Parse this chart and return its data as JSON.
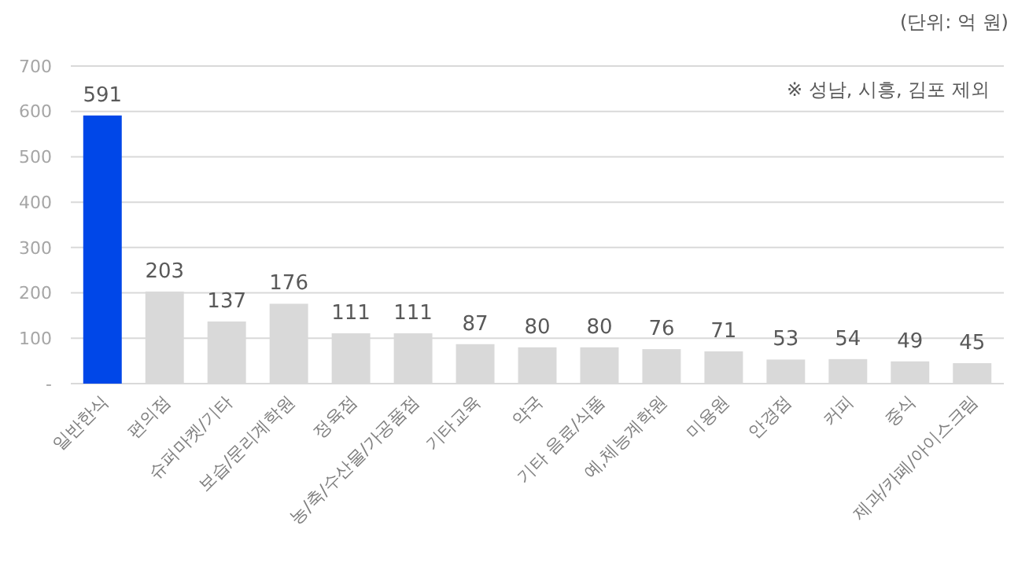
{
  "chart_data": {
    "type": "bar",
    "categories": [
      "일반한식",
      "편의점",
      "슈퍼마켓/기타",
      "보습/문리계학원",
      "정육점",
      "농/축/수산물/가공품점",
      "기타교육",
      "약국",
      "기타 음료/식품",
      "예,체능계학원",
      "미용원",
      "안경점",
      "커피",
      "중식",
      "제과/카페/아이스크림"
    ],
    "values": [
      591,
      203,
      137,
      176,
      111,
      111,
      87,
      80,
      80,
      76,
      71,
      53,
      54,
      49,
      45
    ],
    "colors": [
      "#0047e8",
      "#d9d9d9",
      "#d9d9d9",
      "#d9d9d9",
      "#d9d9d9",
      "#d9d9d9",
      "#d9d9d9",
      "#d9d9d9",
      "#d9d9d9",
      "#d9d9d9",
      "#d9d9d9",
      "#d9d9d9",
      "#d9d9d9",
      "#d9d9d9",
      "#d9d9d9"
    ],
    "ylim": [
      0,
      700
    ],
    "yticks": [
      {
        "value": 0,
        "label": "-"
      },
      100,
      200,
      300,
      400,
      500,
      600,
      700
    ],
    "grid": "y",
    "data_labels": true,
    "annotations": [
      "(단위: 억 원)",
      "※ 성남, 시흥, 김포 제외"
    ]
  }
}
